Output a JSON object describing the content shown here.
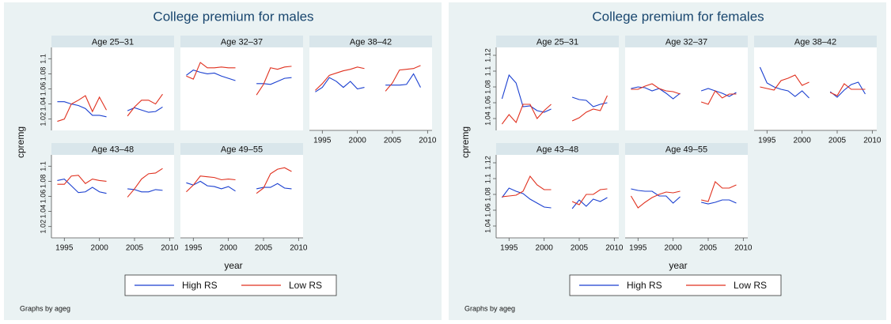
{
  "chart_data": [
    {
      "type": "line",
      "title": "College premium for males",
      "xlabel": "year",
      "ylabel": "cpremg",
      "note": "Graphs by ageg",
      "x": [
        1994,
        1995,
        1996,
        1997,
        1998,
        1999,
        2000,
        2001,
        2002,
        2003,
        2004,
        2005,
        2006,
        2007,
        2008,
        2009
      ],
      "xlim": [
        1993.5,
        2010.3
      ],
      "xticks": [
        1995,
        2000,
        2005,
        2010
      ],
      "ylim": [
        1.005,
        1.115
      ],
      "yticks": [
        1.02,
        1.04,
        1.06,
        1.08,
        1.1
      ],
      "series": [
        {
          "name": "High RS",
          "color": "#1a3fd0"
        },
        {
          "name": "Low RS",
          "color": "#e0301e"
        }
      ],
      "panels": [
        {
          "title": "Age 25–31",
          "values": [
            [
              1.043,
              1.043,
              1.04,
              1.038,
              1.034,
              1.025,
              1.025,
              1.023,
              null,
              null,
              1.031,
              1.035,
              1.032,
              1.029,
              1.03,
              1.036
            ],
            [
              1.017,
              1.02,
              1.04,
              1.045,
              1.051,
              1.03,
              1.049,
              1.032,
              null,
              null,
              1.024,
              1.036,
              1.045,
              1.045,
              1.04,
              1.053
            ]
          ]
        },
        {
          "title": "Age 32–37",
          "values": [
            [
              1.078,
              1.085,
              1.082,
              1.08,
              1.081,
              1.077,
              1.074,
              1.071,
              null,
              null,
              1.067,
              1.067,
              1.066,
              1.07,
              1.074,
              1.075
            ],
            [
              1.077,
              1.073,
              1.095,
              1.088,
              1.088,
              1.089,
              1.088,
              1.088,
              null,
              null,
              1.052,
              1.066,
              1.088,
              1.086,
              1.089,
              1.09
            ]
          ]
        },
        {
          "title": "Age 38–42",
          "values": [
            [
              1.056,
              1.062,
              1.075,
              1.07,
              1.062,
              1.07,
              1.06,
              1.062,
              null,
              null,
              1.065,
              1.065,
              1.065,
              1.066,
              1.08,
              1.062
            ],
            [
              1.058,
              1.067,
              1.078,
              1.081,
              1.084,
              1.086,
              1.089,
              1.087,
              null,
              null,
              1.057,
              1.068,
              1.085,
              1.086,
              1.087,
              1.091
            ]
          ]
        },
        {
          "title": "Age 43–48",
          "values": [
            [
              1.081,
              1.083,
              1.074,
              1.065,
              1.066,
              1.072,
              1.066,
              1.064,
              null,
              null,
              1.07,
              1.069,
              1.066,
              1.066,
              1.069,
              1.068
            ],
            [
              1.076,
              1.076,
              1.087,
              1.088,
              1.077,
              1.083,
              1.081,
              1.08,
              null,
              null,
              1.059,
              1.07,
              1.083,
              1.09,
              1.091,
              1.097
            ]
          ]
        },
        {
          "title": "Age 49–55",
          "values": [
            [
              1.078,
              1.075,
              1.08,
              1.074,
              1.073,
              1.07,
              1.073,
              1.067,
              null,
              null,
              1.07,
              1.072,
              1.072,
              1.077,
              1.071,
              1.07
            ],
            [
              1.066,
              1.075,
              1.087,
              1.086,
              1.085,
              1.082,
              1.083,
              1.082,
              null,
              null,
              1.064,
              1.071,
              1.09,
              1.096,
              1.098,
              1.093
            ]
          ]
        }
      ]
    },
    {
      "type": "line",
      "title": "College premium for females",
      "xlabel": "year",
      "ylabel": "cpremg",
      "note": "Graphs by ageg",
      "x": [
        1994,
        1995,
        1996,
        1997,
        1998,
        1999,
        2000,
        2001,
        2002,
        2003,
        2004,
        2005,
        2006,
        2007,
        2008,
        2009
      ],
      "xlim": [
        1993.5,
        2010.3
      ],
      "xticks": [
        1995,
        2000,
        2005,
        2010
      ],
      "ylim": [
        1.025,
        1.13
      ],
      "yticks": [
        1.04,
        1.06,
        1.08,
        1.1,
        1.12
      ],
      "series": [
        {
          "name": "High RS",
          "color": "#1a3fd0"
        },
        {
          "name": "Low RS",
          "color": "#e0301e"
        }
      ],
      "panels": [
        {
          "title": "Age 25–31",
          "values": [
            [
              1.065,
              1.095,
              1.085,
              1.055,
              1.056,
              1.05,
              1.048,
              1.052,
              null,
              null,
              1.067,
              1.064,
              1.063,
              1.055,
              1.058,
              1.06
            ],
            [
              1.033,
              1.045,
              1.035,
              1.058,
              1.058,
              1.04,
              1.05,
              1.058,
              null,
              null,
              1.037,
              1.041,
              1.048,
              1.052,
              1.05,
              1.069
            ]
          ]
        },
        {
          "title": "Age 32–37",
          "values": [
            [
              1.078,
              1.08,
              1.079,
              1.075,
              1.078,
              1.072,
              1.065,
              1.072,
              null,
              null,
              1.075,
              1.078,
              1.075,
              1.072,
              1.068,
              1.073
            ],
            [
              1.077,
              1.077,
              1.081,
              1.084,
              1.078,
              1.075,
              1.074,
              1.071,
              null,
              null,
              1.061,
              1.058,
              1.075,
              1.066,
              1.071,
              1.071
            ]
          ]
        },
        {
          "title": "Age 38–42",
          "values": [
            [
              1.105,
              1.085,
              1.08,
              1.077,
              1.075,
              1.068,
              1.075,
              1.066,
              null,
              null,
              1.074,
              1.067,
              1.076,
              1.083,
              1.086,
              1.071
            ],
            [
              1.08,
              1.078,
              1.076,
              1.088,
              1.091,
              1.095,
              1.082,
              1.086,
              null,
              null,
              1.073,
              1.069,
              1.084,
              1.077,
              1.077,
              1.077
            ]
          ]
        },
        {
          "title": "Age 43–48",
          "values": [
            [
              1.076,
              1.088,
              1.084,
              1.081,
              1.074,
              1.069,
              1.064,
              1.063,
              null,
              null,
              1.062,
              1.073,
              1.065,
              1.074,
              1.071,
              1.076
            ],
            [
              1.077,
              1.078,
              1.079,
              1.084,
              1.103,
              1.092,
              1.086,
              1.086,
              null,
              null,
              1.071,
              1.067,
              1.08,
              1.08,
              1.086,
              1.087
            ]
          ]
        },
        {
          "title": "Age 49–55",
          "values": [
            [
              1.087,
              1.085,
              1.084,
              1.084,
              1.078,
              1.078,
              1.069,
              1.077,
              null,
              null,
              1.07,
              1.068,
              1.07,
              1.073,
              1.073,
              1.069
            ],
            [
              1.078,
              1.063,
              1.07,
              1.076,
              1.08,
              1.083,
              1.082,
              1.084,
              null,
              null,
              1.073,
              1.071,
              1.096,
              1.088,
              1.088,
              1.092
            ]
          ]
        }
      ]
    }
  ]
}
